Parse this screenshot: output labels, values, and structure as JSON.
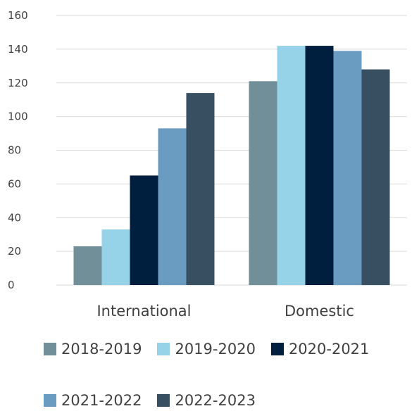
{
  "chart_data": {
    "type": "bar",
    "categories": [
      "International",
      "Domestic"
    ],
    "series": [
      {
        "name": "2018-2019",
        "color": "#718F98",
        "values": [
          23,
          121
        ]
      },
      {
        "name": "2019-2020",
        "color": "#97D3E8",
        "values": [
          33,
          142
        ]
      },
      {
        "name": "2020-2021",
        "color": "#001F3F",
        "values": [
          65,
          142
        ]
      },
      {
        "name": "2021-2022",
        "color": "#6A9BC0",
        "values": [
          93,
          139
        ]
      },
      {
        "name": "2022-2023",
        "color": "#374F61",
        "values": [
          114,
          128
        ]
      }
    ],
    "yticks": [
      "0",
      "20",
      "40",
      "60",
      "80",
      "100",
      "120",
      "140",
      "160"
    ],
    "ylim": [
      0,
      160
    ],
    "grid": true,
    "legend_position": "bottom",
    "title": "",
    "xlabel": "",
    "ylabel": ""
  }
}
